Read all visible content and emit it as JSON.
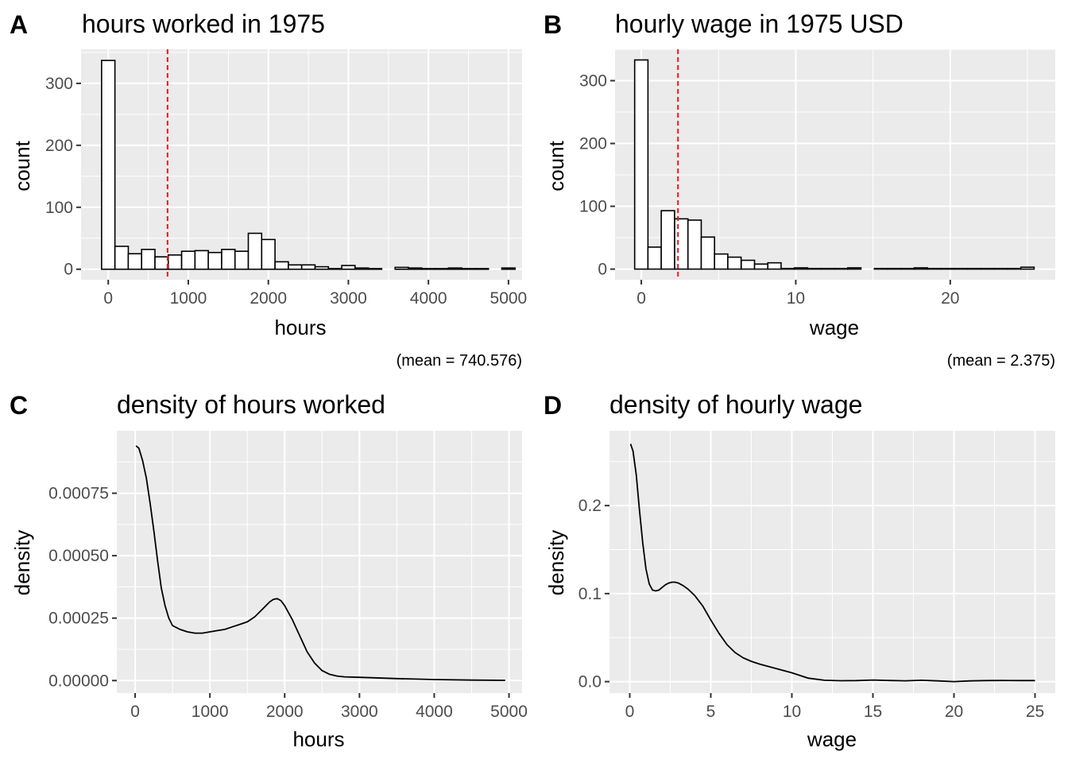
{
  "chart_data": [
    {
      "tag": "A",
      "type": "bar",
      "title": "hours worked in 1975",
      "xlabel": "hours",
      "ylabel": "count",
      "caption": "(mean = 740.576)",
      "mean": 740.576,
      "bin_width": 166.67,
      "x_ticks": [
        0,
        1000,
        2000,
        3000,
        4000,
        5000
      ],
      "x_tick_labels": [
        "0",
        "1000",
        "2000",
        "3000",
        "4000",
        "5000"
      ],
      "y_ticks": [
        0,
        100,
        200,
        300
      ],
      "y_tick_labels": [
        "0",
        "100",
        "200",
        "300"
      ],
      "xlim": [
        -340,
        5170
      ],
      "ylim": [
        -17,
        355
      ],
      "bin_centers": [
        0,
        167,
        333,
        500,
        667,
        833,
        1000,
        1167,
        1333,
        1500,
        1667,
        1833,
        2000,
        2167,
        2333,
        2500,
        2667,
        2833,
        3000,
        3167,
        3333,
        3500,
        3667,
        3833,
        4000,
        4167,
        4333,
        4500,
        4667,
        4833,
        5000
      ],
      "counts": [
        337,
        37,
        25,
        32,
        20,
        23,
        29,
        30,
        27,
        32,
        29,
        58,
        48,
        12,
        7,
        7,
        4,
        1,
        6,
        2,
        1,
        0,
        3,
        2,
        1,
        1,
        2,
        1,
        1,
        0,
        2
      ],
      "grid": true,
      "legend": "none"
    },
    {
      "tag": "B",
      "type": "bar",
      "title": "hourly wage in 1975 USD",
      "xlabel": "wage",
      "ylabel": "count",
      "caption": "(mean = 2.375)",
      "mean": 2.375,
      "bin_width": 0.86,
      "x_ticks": [
        0,
        10,
        20
      ],
      "x_tick_labels": [
        "0",
        "10",
        "20"
      ],
      "y_ticks": [
        0,
        100,
        200,
        300
      ],
      "y_tick_labels": [
        "0",
        "100",
        "200",
        "300"
      ],
      "xlim": [
        -1.7,
        26.8
      ],
      "ylim": [
        -17,
        350
      ],
      "bin_centers": [
        0,
        0.86,
        1.72,
        2.59,
        3.45,
        4.31,
        5.17,
        6.03,
        6.9,
        7.76,
        8.62,
        9.48,
        10.34,
        11.21,
        12.07,
        12.93,
        13.79,
        14.66,
        15.52,
        16.38,
        17.24,
        18.1,
        18.97,
        19.83,
        20.69,
        21.55,
        22.41,
        23.28,
        24.14,
        25.0
      ],
      "counts": [
        333,
        35,
        93,
        80,
        78,
        51,
        24,
        19,
        14,
        8,
        10,
        1,
        2,
        1,
        1,
        1,
        2,
        0,
        1,
        1,
        1,
        2,
        1,
        1,
        1,
        1,
        1,
        1,
        1,
        3
      ],
      "grid": true,
      "legend": "none"
    },
    {
      "tag": "C",
      "type": "line",
      "title": "density of hours worked",
      "xlabel": "hours",
      "ylabel": "density",
      "x_ticks": [
        0,
        1000,
        2000,
        3000,
        4000,
        5000
      ],
      "x_tick_labels": [
        "0",
        "1000",
        "2000",
        "3000",
        "4000",
        "5000"
      ],
      "y_ticks": [
        0,
        0.00025,
        0.0005,
        0.00075
      ],
      "y_tick_labels": [
        "0.00000",
        "0.00025",
        "0.00050",
        "0.00075"
      ],
      "xlim": [
        -245,
        5175
      ],
      "ylim": [
        -5e-05,
        0.001
      ],
      "x": [
        12,
        50,
        100,
        150,
        200,
        250,
        300,
        350,
        400,
        450,
        500,
        600,
        700,
        800,
        900,
        1000,
        1100,
        1200,
        1300,
        1400,
        1500,
        1600,
        1700,
        1800,
        1850,
        1900,
        1950,
        2000,
        2100,
        2200,
        2300,
        2400,
        2500,
        2600,
        2700,
        2800,
        3000,
        3200,
        3500,
        4000,
        4500,
        4950
      ],
      "y": [
        0.00094,
        0.00093,
        0.00088,
        0.00081,
        0.00071,
        0.0006,
        0.00048,
        0.00037,
        0.0003,
        0.00025,
        0.00022,
        0.000205,
        0.000195,
        0.00019,
        0.00019,
        0.000195,
        0.0002,
        0.000205,
        0.000215,
        0.000225,
        0.000235,
        0.000255,
        0.000285,
        0.000315,
        0.000325,
        0.000328,
        0.00032,
        0.0003,
        0.000245,
        0.00018,
        0.000115,
        7e-05,
        4e-05,
        2.5e-05,
        1.8e-05,
        1.5e-05,
        1.3e-05,
        1.1e-05,
        8e-06,
        4e-06,
        2e-06,
        1e-06
      ],
      "grid": true,
      "legend": "none"
    },
    {
      "tag": "D",
      "type": "line",
      "title": "density of hourly wage",
      "xlabel": "wage",
      "ylabel": "density",
      "x_ticks": [
        0,
        5,
        10,
        15,
        20,
        25
      ],
      "x_tick_labels": [
        "0",
        "5",
        "10",
        "15",
        "20",
        "25"
      ],
      "y_ticks": [
        0,
        0.1,
        0.2
      ],
      "y_tick_labels": [
        "0.0",
        "0.1",
        "0.2"
      ],
      "xlim": [
        -1.25,
        26.25
      ],
      "ylim": [
        -0.013,
        0.285
      ],
      "x": [
        0.05,
        0.2,
        0.4,
        0.6,
        0.8,
        1.0,
        1.2,
        1.4,
        1.6,
        1.8,
        2.0,
        2.2,
        2.4,
        2.6,
        2.8,
        3.0,
        3.3,
        3.6,
        4.0,
        4.5,
        5.0,
        5.5,
        6.0,
        6.5,
        7.0,
        7.5,
        8.0,
        9.0,
        10.0,
        11.0,
        12.0,
        13.0,
        14.0,
        15.0,
        16.0,
        17.0,
        18.0,
        19.0,
        20.0,
        21.0,
        22.0,
        23.0,
        24.0,
        25.0
      ],
      "y": [
        0.27,
        0.262,
        0.235,
        0.195,
        0.158,
        0.128,
        0.111,
        0.104,
        0.103,
        0.104,
        0.107,
        0.11,
        0.112,
        0.113,
        0.113,
        0.112,
        0.109,
        0.105,
        0.098,
        0.086,
        0.07,
        0.055,
        0.042,
        0.033,
        0.027,
        0.023,
        0.02,
        0.015,
        0.01,
        0.004,
        0.0015,
        0.001,
        0.0012,
        0.0018,
        0.0013,
        0.0009,
        0.0015,
        0.0008,
        0.0,
        0.0008,
        0.0012,
        0.0013,
        0.0012,
        0.0012
      ],
      "grid": true,
      "legend": "none"
    }
  ]
}
